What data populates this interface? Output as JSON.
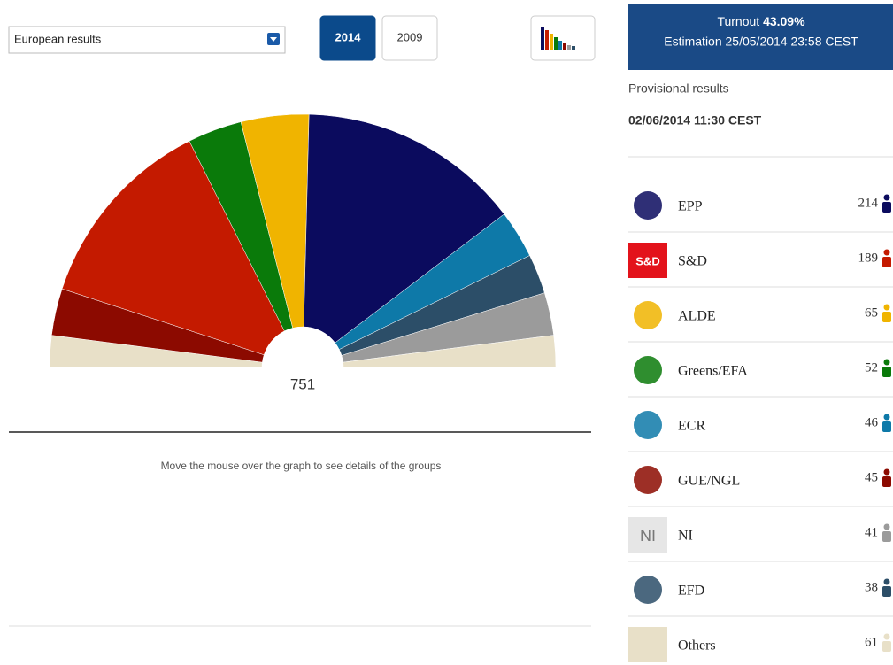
{
  "controls": {
    "dropdown": "European results",
    "years": [
      "2014",
      "2009"
    ],
    "active_year": "2014"
  },
  "hemicycle": {
    "total": "751",
    "hint": "Move the mouse over the graph to see details of the groups"
  },
  "status": {
    "turnout_label": "Turnout",
    "turnout_value": "43.09%",
    "estimation": "Estimation 25/05/2014 23:58 CEST",
    "provisional": "Provisional results",
    "updated": "02/06/2014 11:30 CEST"
  },
  "groups": [
    {
      "name": "EPP",
      "seats": 214,
      "color": "#0b0b5e"
    },
    {
      "name": "S&D",
      "seats": 189,
      "color": "#c41a00",
      "logo_text": "S&D"
    },
    {
      "name": "ALDE",
      "seats": 65,
      "color": "#f0b400"
    },
    {
      "name": "Greens/EFA",
      "seats": 52,
      "color": "#0a7a0a"
    },
    {
      "name": "ECR",
      "seats": 46,
      "color": "#0e79a8"
    },
    {
      "name": "GUE/NGL",
      "seats": 45,
      "color": "#8c0a00"
    },
    {
      "name": "NI",
      "seats": 41,
      "color": "#9b9b9b",
      "logo_text": "NI"
    },
    {
      "name": "EFD",
      "seats": 38,
      "color": "#2c4e68"
    },
    {
      "name": "Others",
      "seats": 61,
      "color": "#e8e0c8"
    }
  ]
}
